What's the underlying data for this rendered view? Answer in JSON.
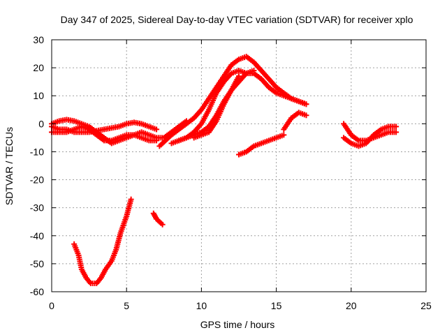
{
  "chart_data": {
    "type": "scatter",
    "title": "Day 347 of 2025, Sidereal Day-to-day VTEC variation (SDTVAR) for receiver xplo",
    "xlabel": "GPS time / hours",
    "ylabel": "SDTVAR / TECUs",
    "xlim": [
      0,
      25
    ],
    "ylim": [
      -60,
      30
    ],
    "xticks": [
      0,
      5,
      10,
      15,
      20,
      25
    ],
    "yticks": [
      -60,
      -50,
      -40,
      -30,
      -20,
      -10,
      0,
      10,
      20,
      30
    ],
    "grid": true,
    "marker": "plus",
    "color": "#ff0000",
    "series": [
      {
        "name": "trace-1",
        "x": [
          0,
          0.5,
          1,
          1.5,
          2,
          2.5,
          3,
          3.5,
          4,
          4.5,
          5,
          5.5,
          6,
          6.5,
          7
        ],
        "y": [
          -1,
          -2,
          -2,
          -3,
          -3,
          -3,
          -2.5,
          -2,
          -1.5,
          -1,
          0,
          0.5,
          0,
          -1,
          -2
        ]
      },
      {
        "name": "trace-2",
        "x": [
          0,
          0.5,
          1,
          1.5,
          2,
          2.5,
          3,
          3.5,
          4,
          4.5,
          5,
          5.5,
          6,
          6.5,
          7,
          7.5,
          8,
          8.5,
          9
        ],
        "y": [
          0,
          1,
          1.5,
          1,
          0,
          -1,
          -3,
          -5,
          -7,
          -6,
          -5,
          -4,
          -3,
          -4,
          -5,
          -5,
          -3,
          -1,
          1
        ]
      },
      {
        "name": "trace-3",
        "x": [
          0,
          0.5,
          1,
          1.5,
          2,
          2.5,
          3,
          3.5,
          4,
          4.5,
          5,
          5.5,
          6,
          6.5,
          7
        ],
        "y": [
          -3,
          -3,
          -3,
          -2,
          -1,
          -2,
          -4,
          -6,
          -6,
          -5,
          -4,
          -4,
          -5,
          -6,
          -6
        ]
      },
      {
        "name": "trace-4",
        "x": [
          7.2,
          7.6,
          8,
          8.5,
          9,
          9.5,
          10,
          10.5,
          11,
          11.5,
          12,
          12.5,
          13,
          13.5,
          14,
          14.5,
          15,
          15.5,
          16,
          16.5,
          17
        ],
        "y": [
          -8,
          -6,
          -4,
          -2,
          0,
          2,
          5,
          9,
          13,
          17,
          21,
          23,
          24,
          22,
          19,
          16,
          13,
          11,
          9,
          8,
          7
        ]
      },
      {
        "name": "trace-5",
        "x": [
          8,
          8.5,
          9,
          9.5,
          10,
          10.5,
          11,
          11.5,
          12,
          12.5,
          13,
          13.5,
          14,
          14.5,
          15,
          15.5,
          16,
          16.5,
          17
        ],
        "y": [
          -7,
          -6,
          -5,
          -3,
          0,
          5,
          11,
          15,
          18,
          19,
          18,
          18,
          16,
          13,
          11,
          10,
          9,
          8,
          7
        ]
      },
      {
        "name": "trace-6",
        "x": [
          8.5,
          9,
          9.5,
          10,
          10.5,
          11,
          11.5,
          12,
          12.5
        ],
        "y": [
          -6,
          -5,
          -4,
          -3,
          -1,
          3,
          8,
          12,
          17
        ]
      },
      {
        "name": "trace-7",
        "x": [
          9.5,
          10,
          10.5,
          11,
          11.5,
          12,
          12.5,
          13,
          13.5
        ],
        "y": [
          -5,
          -4,
          -3,
          1,
          7,
          12,
          15,
          18,
          19
        ]
      },
      {
        "name": "trace-8",
        "x": [
          12.5,
          13,
          13.5,
          14,
          14.5,
          15,
          15.5
        ],
        "y": [
          -11,
          -10,
          -8,
          -7,
          -6,
          -5,
          -4
        ]
      },
      {
        "name": "trace-9",
        "x": [
          15.5,
          16,
          16.5,
          17
        ],
        "y": [
          -2,
          2,
          4,
          3
        ]
      },
      {
        "name": "trace-10",
        "x": [
          19.5,
          20,
          20.5,
          21,
          21.5,
          22,
          22.5,
          23
        ],
        "y": [
          -5,
          -7,
          -8,
          -7,
          -4,
          -2,
          -1,
          -1
        ]
      },
      {
        "name": "trace-11",
        "x": [
          19.5,
          20,
          20.5,
          21,
          21.5,
          22,
          22.5,
          23
        ],
        "y": [
          0,
          -4,
          -6,
          -6,
          -5,
          -4,
          -3,
          -3
        ]
      },
      {
        "name": "trace-12",
        "x": [
          1.5,
          1.8,
          2,
          2.3,
          2.6,
          3,
          3.3,
          3.6,
          4,
          4.3,
          4.6,
          5,
          5.3
        ],
        "y": [
          -43,
          -47,
          -52,
          -55,
          -57,
          -57,
          -55,
          -52,
          -49,
          -45,
          -39,
          -33,
          -27
        ]
      },
      {
        "name": "trace-13",
        "x": [
          6.8,
          7,
          7.2,
          7.4
        ],
        "y": [
          -32,
          -34,
          -35,
          -36
        ]
      }
    ]
  }
}
